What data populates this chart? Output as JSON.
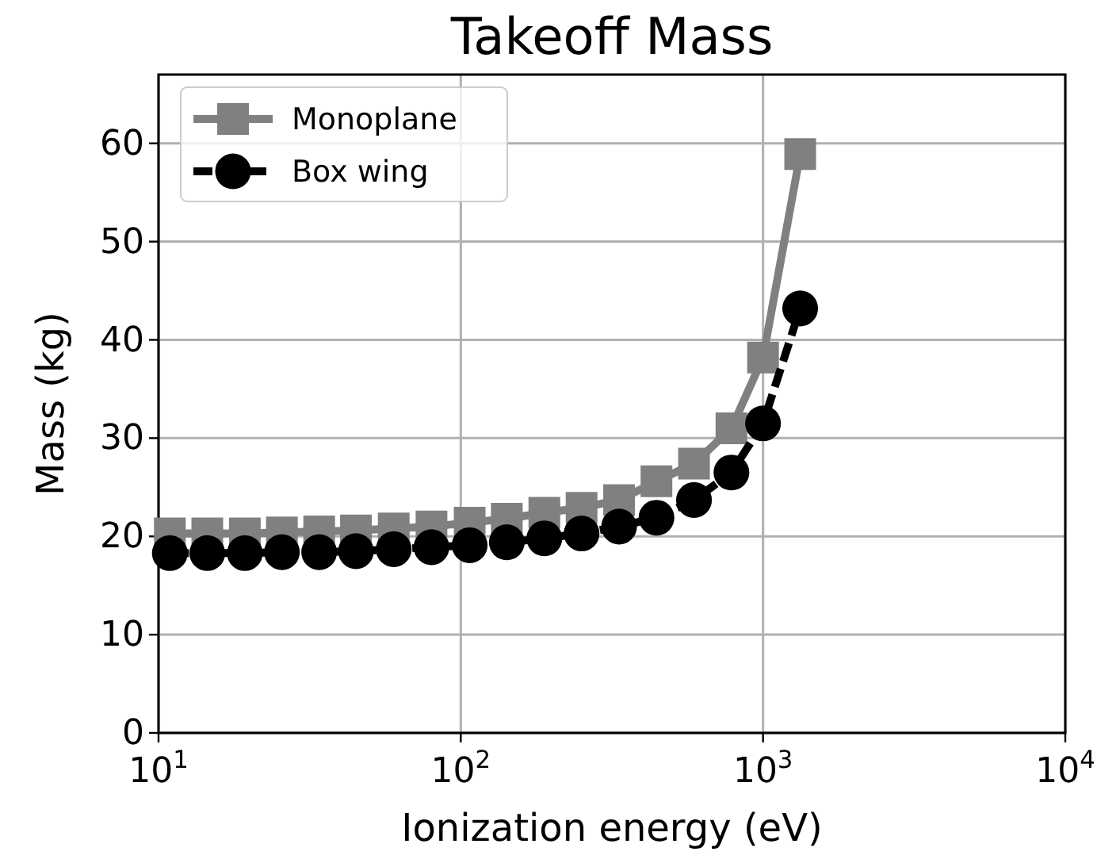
{
  "chart_data": {
    "type": "line",
    "title": "Takeoff Mass",
    "xlabel": "Ionization energy (eV)",
    "ylabel": "Mass (kg)",
    "log": "x",
    "grid": true,
    "legend": "top left",
    "xlim": [
      10,
      10000
    ],
    "xticks": [
      {
        "value": 10,
        "label": "10$^{1}$"
      },
      {
        "value": 100,
        "label": "10$^{2}$"
      },
      {
        "value": 1000,
        "label": "10$^{3}$"
      },
      {
        "value": 10000,
        "label": "10$^{4}$"
      }
    ],
    "ylim": [
      0,
      67
    ],
    "yticks": [
      0,
      10,
      20,
      30,
      40,
      50,
      60
    ],
    "x": [
      10.9,
      14.5,
      19.3,
      25.6,
      34,
      45,
      60,
      80,
      107,
      142,
      189,
      251,
      334,
      444,
      591,
      786,
      1000,
      1327
    ],
    "series": [
      {
        "name": "Monoplane",
        "color": "#808080",
        "marker": "square",
        "line_style": "solid",
        "values": [
          20.3,
          20.3,
          20.3,
          20.4,
          20.5,
          20.6,
          20.8,
          21.0,
          21.4,
          21.8,
          22.4,
          22.9,
          23.7,
          25.6,
          27.4,
          31.0,
          38.2,
          58.9
        ]
      },
      {
        "name": "Box wing",
        "color": "#000000",
        "marker": "circle",
        "line_style": "dashed",
        "values": [
          18.3,
          18.3,
          18.3,
          18.4,
          18.4,
          18.5,
          18.7,
          18.9,
          19.1,
          19.4,
          19.8,
          20.3,
          21.0,
          21.9,
          23.7,
          26.5,
          31.5,
          43.2
        ]
      }
    ]
  }
}
